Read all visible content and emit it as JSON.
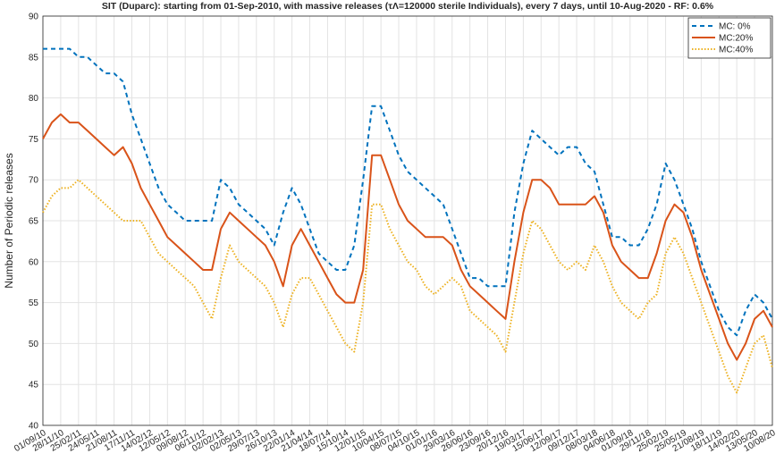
{
  "chart_data": {
    "type": "line",
    "title": "SIT (Duparc): starting from 01-Sep-2010, with massive releases (τΛ=120000 sterile Individuals), every 7 days,  until 10-Aug-2020 - RF: 0.6%",
    "ylabel": "Number of Periodic releases",
    "categories": [
      "01/09/10",
      null,
      "28/11/10",
      null,
      "25/02/11",
      null,
      "24/05/11",
      null,
      "21/08/11",
      null,
      "17/11/11",
      null,
      "14/02/12",
      null,
      "12/05/12",
      null,
      "09/08/12",
      null,
      "06/11/12",
      null,
      "02/02/13",
      null,
      "02/05/13",
      null,
      "29/07/13",
      null,
      "26/10/13",
      null,
      "22/01/14",
      null,
      "21/04/14",
      null,
      "18/07/14",
      null,
      "15/10/14",
      null,
      "12/01/15",
      null,
      "10/04/15",
      null,
      "08/07/15",
      null,
      "04/10/15",
      null,
      "01/01/16",
      null,
      "29/03/16",
      null,
      "26/06/16",
      null,
      "23/09/16",
      null,
      "20/12/16",
      null,
      "19/03/17",
      null,
      "15/06/17",
      null,
      "12/09/17",
      null,
      "09/12/17",
      null,
      "08/03/18",
      null,
      "04/06/18",
      null,
      "01/09/18",
      null,
      "29/11/18",
      null,
      "25/02/19",
      null,
      "25/05/19",
      null,
      "21/08/19",
      null,
      "18/11/19",
      null,
      "14/02/20",
      null,
      "13/05/20",
      null,
      "10/08/20"
    ],
    "series": [
      {
        "name": "MC: 0%",
        "color": "#0072BD",
        "dash": "5,4",
        "values": [
          86,
          86,
          86,
          86,
          85,
          85,
          84,
          83,
          83,
          82,
          78,
          75,
          72,
          69,
          67,
          66,
          65,
          65,
          65,
          65,
          70,
          69,
          67,
          66,
          65,
          64,
          62,
          66,
          69,
          67,
          64,
          61,
          60,
          59,
          59,
          62,
          70,
          79,
          79,
          76,
          73,
          71,
          70,
          69,
          68,
          67,
          64,
          61,
          58,
          58,
          57,
          57,
          57,
          66,
          72,
          76,
          75,
          74,
          73,
          74,
          74,
          72,
          71,
          67,
          63,
          63,
          62,
          62,
          64,
          67,
          72,
          70,
          67,
          64,
          60,
          57,
          54,
          52,
          51,
          54,
          56,
          55,
          53
        ]
      },
      {
        "name": "MC:20%",
        "color": "#D95319",
        "dash": "none",
        "values": [
          75,
          77,
          78,
          77,
          77,
          76,
          75,
          74,
          73,
          74,
          72,
          69,
          67,
          65,
          63,
          62,
          61,
          60,
          59,
          59,
          64,
          66,
          65,
          64,
          63,
          62,
          60,
          57,
          62,
          64,
          62,
          60,
          58,
          56,
          55,
          55,
          59,
          73,
          73,
          70,
          67,
          65,
          64,
          63,
          63,
          63,
          62,
          59,
          57,
          56,
          55,
          54,
          53,
          60,
          66,
          70,
          70,
          69,
          67,
          67,
          67,
          67,
          68,
          66,
          62,
          60,
          59,
          58,
          58,
          61,
          65,
          67,
          66,
          63,
          59,
          56,
          53,
          50,
          48,
          50,
          53,
          54,
          52
        ]
      },
      {
        "name": "MC:40%",
        "color": "#EDB120",
        "dash": "1.5,2",
        "values": [
          66,
          68,
          69,
          69,
          70,
          69,
          68,
          67,
          66,
          65,
          65,
          65,
          63,
          61,
          60,
          59,
          58,
          57,
          55,
          53,
          58,
          62,
          60,
          59,
          58,
          57,
          55,
          52,
          56,
          58,
          58,
          56,
          54,
          52,
          50,
          49,
          55,
          67,
          67,
          64,
          62,
          60,
          59,
          57,
          56,
          57,
          58,
          57,
          54,
          53,
          52,
          51,
          49,
          55,
          61,
          65,
          64,
          62,
          60,
          59,
          60,
          59,
          62,
          60,
          57,
          55,
          54,
          53,
          55,
          56,
          61,
          63,
          61,
          58,
          55,
          52,
          49,
          46,
          44,
          47,
          50,
          51,
          47
        ]
      }
    ],
    "ylim": [
      40,
      90
    ],
    "yticks": [
      40,
      45,
      50,
      55,
      60,
      65,
      70,
      75,
      80,
      85,
      90
    ],
    "grid": true,
    "legend": "upper right"
  }
}
